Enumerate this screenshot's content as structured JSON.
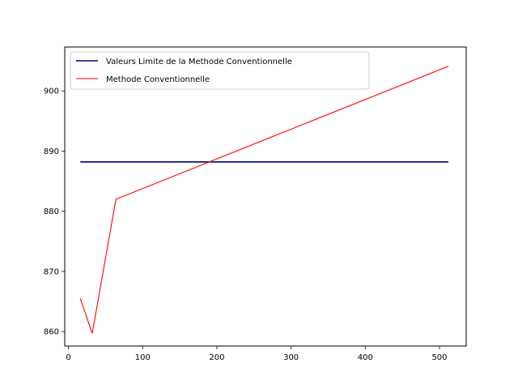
{
  "chart_data": {
    "type": "line",
    "xlim": [
      -5,
      536
    ],
    "ylim": [
      857.6,
      907.3
    ],
    "x_ticks": [
      0,
      100,
      200,
      300,
      400,
      500
    ],
    "y_ticks": [
      860,
      870,
      880,
      890,
      900
    ],
    "x_tick_labels": [
      "0",
      "100",
      "200",
      "300",
      "400",
      "500"
    ],
    "y_tick_labels": [
      "860",
      "870",
      "880",
      "890",
      "900"
    ],
    "grid": false,
    "legend_position": "upper-left",
    "series": [
      {
        "name": "Valeurs Limite de la Methode Conventionnelle",
        "color": "#000080",
        "x": [
          16,
          512
        ],
        "y": [
          888.2,
          888.2
        ]
      },
      {
        "name": "Methode Conventionnelle",
        "color": "#ff0000",
        "x": [
          16,
          32,
          64,
          512
        ],
        "y": [
          865.5,
          859.7,
          882.0,
          904.1
        ]
      }
    ]
  }
}
